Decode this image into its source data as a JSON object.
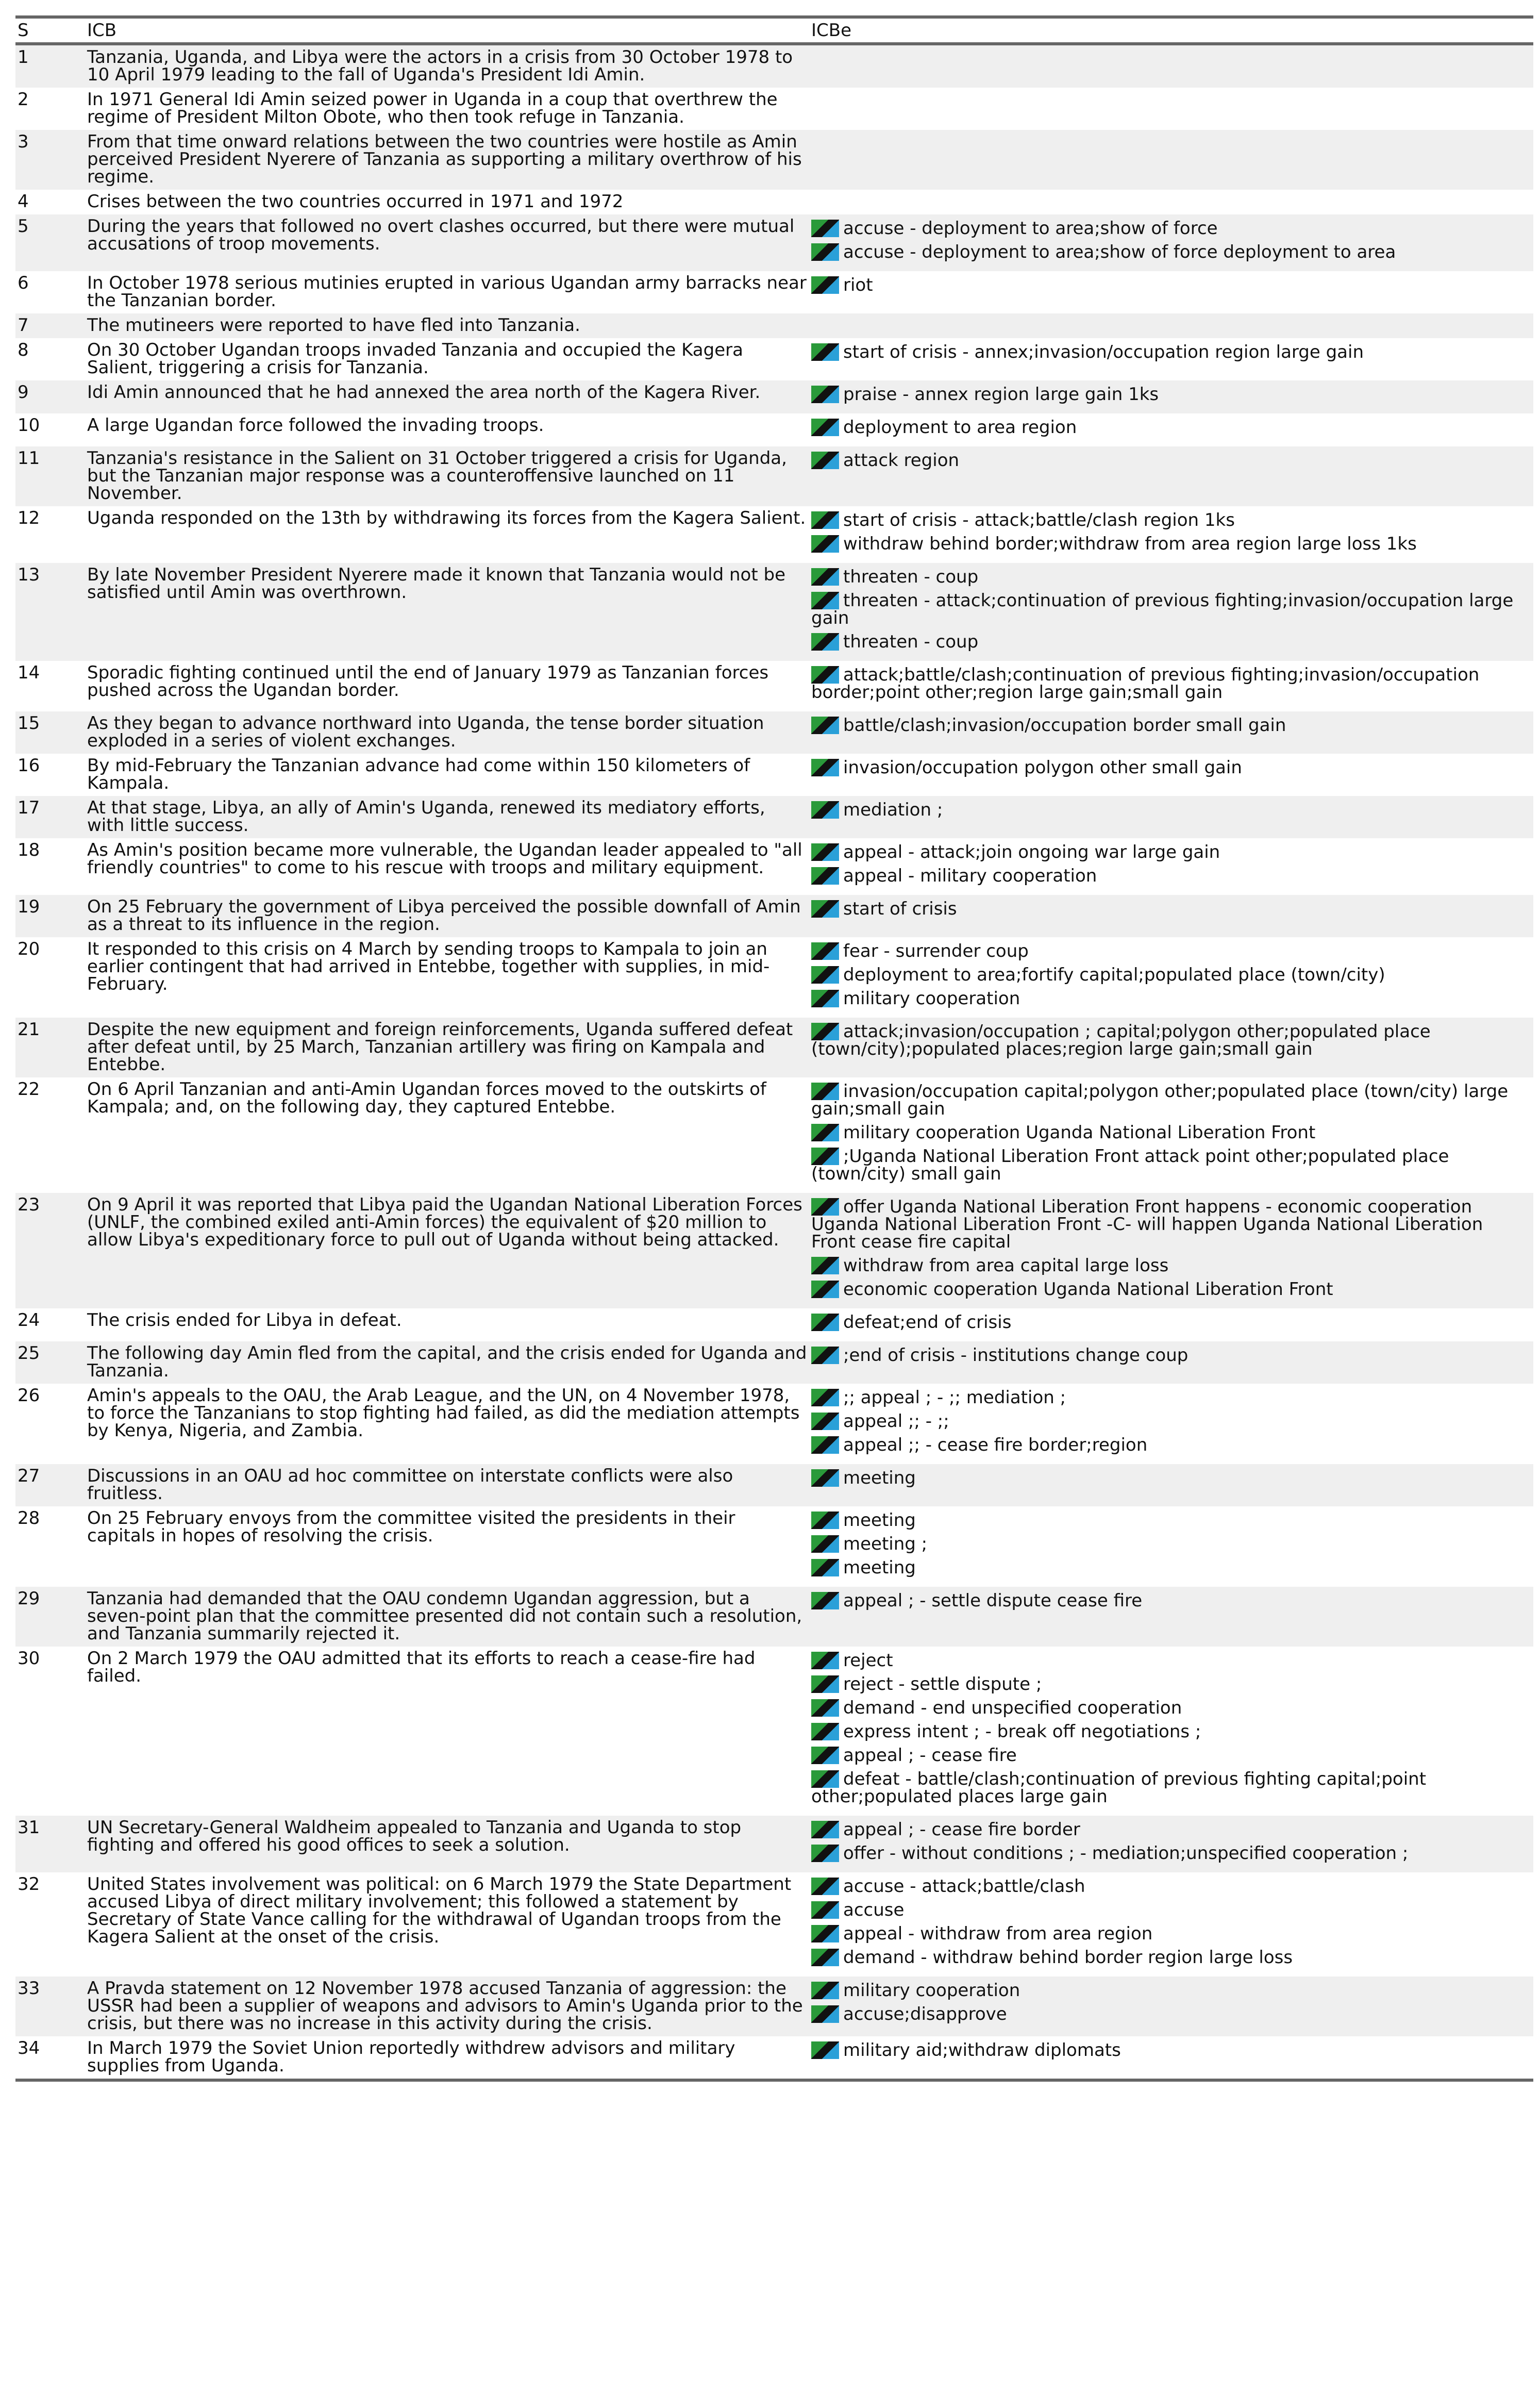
{
  "table": {
    "headers": [
      "S",
      "ICB",
      "ICBe"
    ],
    "rows": [
      {
        "s": "1",
        "icb": "Tanzania, Uganda, and Libya were the actors in a crisis from 30 October 1978 to 10 April 1979 leading to the fall of Uganda's President Idi Amin.",
        "icbe": []
      },
      {
        "s": "2",
        "icb": "In 1971 General Idi Amin seized power in Uganda in a coup that overthrew the regime of President Milton Obote, who then took refuge in Tanzania.",
        "icbe": []
      },
      {
        "s": "3",
        "icb": "From that time onward relations between the two countries were hostile as Amin perceived President Nyerere of Tanzania as supporting a military overthrow of his regime.",
        "icbe": []
      },
      {
        "s": "4",
        "icb": "Crises between the two countries occurred in 1971 and 1972",
        "icbe": []
      },
      {
        "s": "5",
        "icb": "During the years that followed no overt clashes occurred, but there were mutual accusations of troop movements.",
        "icbe": [
          "accuse - deployment to area;show of force",
          "accuse - deployment to area;show of force deployment to area"
        ]
      },
      {
        "s": "6",
        "icb": "In October 1978 serious mutinies erupted in various Ugandan army barracks near the Tanzanian border.",
        "icbe": [
          "riot"
        ]
      },
      {
        "s": "7",
        "icb": "The mutineers were reported to have fled into Tanzania.",
        "icbe": []
      },
      {
        "s": "8",
        "icb": "On 30 October Ugandan troops invaded Tanzania and occupied the Kagera Salient, triggering a crisis for Tanzania.",
        "icbe": [
          "start of crisis - annex;invasion/occupation region large gain"
        ]
      },
      {
        "s": "9",
        "icb": "Idi Amin announced that he had annexed the area north of the Kagera River.",
        "icbe": [
          "praise - annex region large gain 1ks"
        ]
      },
      {
        "s": "10",
        "icb": "A large Ugandan force followed the invading troops.",
        "icbe": [
          "deployment to area region"
        ]
      },
      {
        "s": "11",
        "icb": "Tanzania's resistance in the Salient on 31 October triggered a crisis for Uganda, but the Tanzanian major response was a counteroffensive launched on 11 November.",
        "icbe": [
          "attack region"
        ]
      },
      {
        "s": "12",
        "icb": "Uganda responded on the 13th by withdrawing its forces from the Kagera Salient.",
        "icbe": [
          "start of crisis - attack;battle/clash region 1ks",
          "withdraw behind border;withdraw from area region large loss 1ks"
        ]
      },
      {
        "s": "13",
        "icb": "By late November President Nyerere made it known that Tanzania would not be satisfied until Amin was overthrown.",
        "icbe": [
          "threaten - coup",
          "threaten - attack;continuation of previous fighting;invasion/occupation large gain",
          "threaten - coup"
        ]
      },
      {
        "s": "14",
        "icb": "Sporadic fighting continued until the end of January 1979 as Tanzanian forces pushed across the Ugandan border.",
        "icbe": [
          "attack;battle/clash;continuation of previous fighting;invasion/occupation border;point other;region large gain;small gain"
        ]
      },
      {
        "s": "15",
        "icb": "As they began to advance northward into Uganda, the tense border situation exploded in a series of violent exchanges.",
        "icbe": [
          "battle/clash;invasion/occupation border small gain"
        ]
      },
      {
        "s": "16",
        "icb": "By mid-February the Tanzanian advance had come within 150 kilometers of Kampala.",
        "icbe": [
          "invasion/occupation polygon other small gain"
        ]
      },
      {
        "s": "17",
        "icb": "At that stage, Libya, an ally of Amin's Uganda, renewed its mediatory efforts, with little success.",
        "icbe": [
          "mediation ;"
        ]
      },
      {
        "s": "18",
        "icb": "As Amin's position became more vulnerable, the Ugandan leader appealed to \"all friendly countries\" to come to his rescue with troops and military equipment.",
        "icbe": [
          "appeal - attack;join ongoing war large gain",
          "appeal - military cooperation"
        ]
      },
      {
        "s": "19",
        "icb": "On 25 February the government of Libya perceived the possible downfall of Amin as a threat to its influence in the region.",
        "icbe": [
          "start of crisis"
        ]
      },
      {
        "s": "20",
        "icb": "It responded to this crisis on 4 March by sending troops to Kampala to join an earlier contingent that had arrived in Entebbe, together with supplies, in mid-February.",
        "icbe": [
          "fear - surrender coup",
          "deployment to area;fortify capital;populated place (town/city)",
          "military cooperation"
        ]
      },
      {
        "s": "21",
        "icb": "Despite the new equipment and foreign reinforcements, Uganda suffered defeat after defeat until, by 25 March, Tanzanian artillery was firing on Kampala and Entebbe.",
        "icbe": [
          "attack;invasion/occupation ; capital;polygon other;populated place (town/city);populated places;region large gain;small gain"
        ]
      },
      {
        "s": "22",
        "icb": "On 6 April Tanzanian and anti-Amin Ugandan forces moved to the outskirts of Kampala; and, on the following day, they captured Entebbe.",
        "icbe": [
          "invasion/occupation capital;polygon other;populated place (town/city) large gain;small gain",
          "military cooperation Uganda National Liberation Front",
          ";Uganda National Liberation Front attack point other;populated place (town/city) small gain"
        ]
      },
      {
        "s": "23",
        "icb": "On 9 April it was reported that Libya paid the Ugandan National Liberation Forces (UNLF, the combined exiled anti-Amin forces) the equivalent of $20 million to allow Libya's expeditionary force to pull out of Uganda without being attacked.",
        "icbe": [
          "offer Uganda National Liberation Front happens - economic cooperation Uganda National Liberation Front -C- will happen Uganda National Liberation Front cease fire capital",
          "withdraw from area capital large loss",
          "economic cooperation Uganda National Liberation Front"
        ]
      },
      {
        "s": "24",
        "icb": "The crisis ended for Libya in defeat.",
        "icbe": [
          "defeat;end of crisis"
        ]
      },
      {
        "s": "25",
        "icb": "The following day Amin fled from the capital, and the crisis ended for Uganda and Tanzania.",
        "icbe": [
          ";end of crisis - institutions change coup"
        ]
      },
      {
        "s": "26",
        "icb": "Amin's appeals to the OAU, the Arab League, and the UN, on 4 November 1978, to force the Tanzanians to stop fighting had failed, as did the mediation attempts by Kenya, Nigeria, and Zambia.",
        "icbe": [
          ";; appeal ; - ;; mediation ;",
          "appeal ;; - ;;",
          "appeal ;; - cease fire border;region"
        ]
      },
      {
        "s": "27",
        "icb": "Discussions in an OAU ad hoc committee on interstate conflicts were also fruitless.",
        "icbe": [
          "meeting"
        ]
      },
      {
        "s": "28",
        "icb": "On 25 February envoys from the committee visited the presidents in their capitals in hopes of resolving the crisis.",
        "icbe": [
          "meeting",
          "meeting ;",
          "meeting"
        ]
      },
      {
        "s": "29",
        "icb": "Tanzania had demanded that the OAU condemn Ugandan aggression, but a seven-point plan that the committee presented did not contain such a resolution, and Tanzania summarily rejected it.",
        "icbe": [
          "appeal ; - settle dispute cease fire"
        ]
      },
      {
        "s": "30",
        "icb": "On 2 March 1979 the OAU admitted that its efforts to reach a cease-fire had failed.",
        "icbe": [
          "reject",
          "reject - settle dispute ;",
          "demand - end unspecified cooperation",
          "express intent ; - break off negotiations ;",
          "appeal ; - cease fire",
          "defeat - battle/clash;continuation of previous fighting capital;point other;populated places large gain"
        ]
      },
      {
        "s": "31",
        "icb": "UN Secretary-General Waldheim appealed to Tanzania and Uganda to stop fighting and offered his good offices to seek a solution.",
        "icbe": [
          "appeal ; - cease fire border",
          "offer - without conditions ; - mediation;unspecified cooperation ;"
        ]
      },
      {
        "s": "32",
        "icb": "United States involvement was political: on 6 March 1979 the State Department accused Libya of direct military involvement; this followed a statement by Secretary of State Vance calling for the withdrawal of Ugandan troops from the Kagera Salient at the onset of the crisis.",
        "icbe": [
          "accuse - attack;battle/clash",
          "accuse",
          "appeal - withdraw from area region",
          "demand - withdraw behind border region large loss"
        ]
      },
      {
        "s": "33",
        "icb": "A Pravda statement on 12 November 1978 accused Tanzania of aggression: the USSR had been a supplier of weapons and advisors to Amin's Uganda prior to the crisis, but there was no increase in this activity during the crisis.",
        "icbe": [
          "military cooperation",
          "accuse;disapprove"
        ]
      },
      {
        "s": "34",
        "icb": "In March 1979 the Soviet Union reportedly withdrew advisors and military supplies from Uganda.",
        "icbe": [
          "military aid;withdraw diplomats"
        ]
      }
    ]
  }
}
